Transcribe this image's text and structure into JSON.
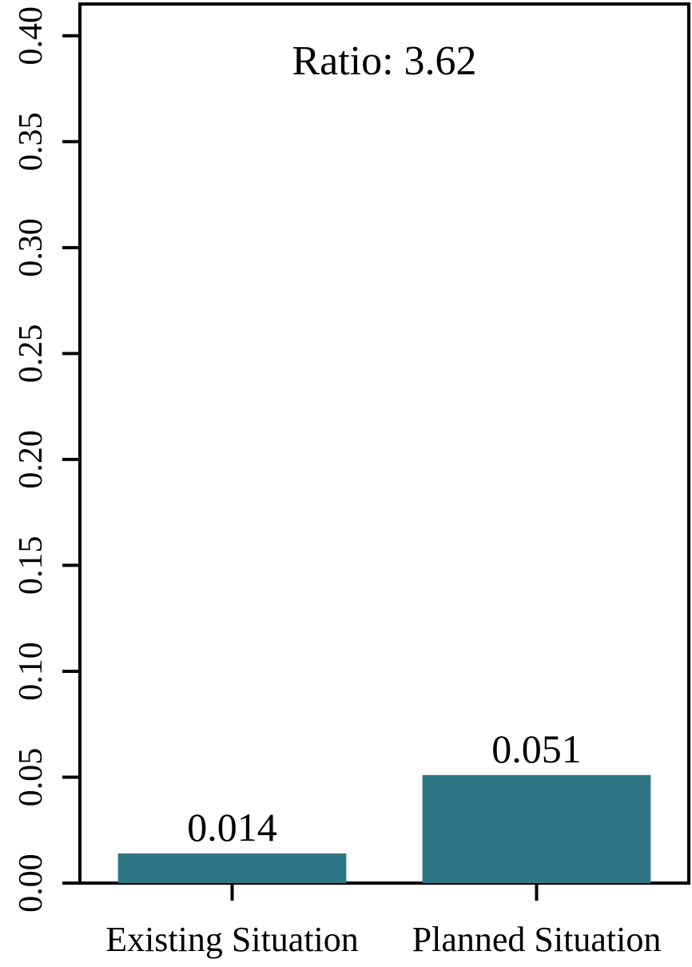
{
  "chart_data": {
    "type": "bar",
    "categories": [
      "Existing Situation",
      "Planned Situation"
    ],
    "values": [
      0.014,
      0.051
    ],
    "data_labels": [
      "0.014",
      "0.051"
    ],
    "annotation": "Ratio: 3.62",
    "title": "",
    "xlabel": "",
    "ylabel": "",
    "ylim": [
      0,
      0.415
    ],
    "yticks": [
      0.0,
      0.05,
      0.1,
      0.15,
      0.2,
      0.25,
      0.3,
      0.35,
      0.4
    ],
    "ytick_labels": [
      "0.00",
      "0.05",
      "0.10",
      "0.15",
      "0.20",
      "0.25",
      "0.30",
      "0.35",
      "0.40"
    ],
    "grid": false,
    "legend": "none",
    "colors": {
      "bar": "#2e7686",
      "axis": "#000000"
    }
  }
}
